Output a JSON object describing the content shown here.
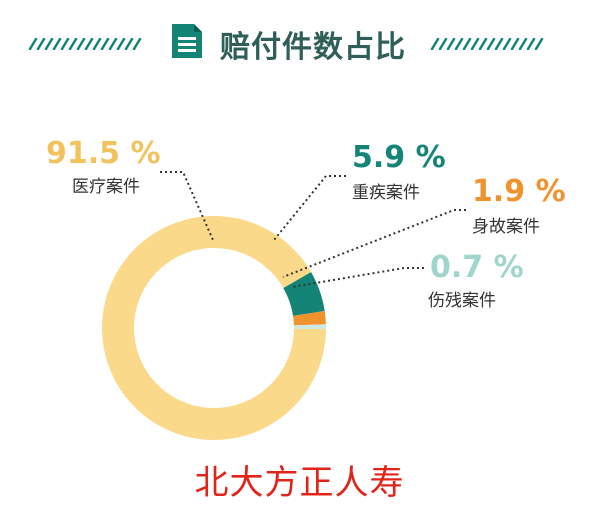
{
  "header": {
    "title": "赔付件数占比",
    "icon": "document-icon"
  },
  "footer": {
    "text": "北大方正人寿"
  },
  "colors": {
    "brand": "#138476",
    "yellow": "#fbd98a",
    "teal": "#138476",
    "orange": "#f0922e",
    "light": "#cde9e4",
    "red": "#e2231a"
  },
  "chart_data": {
    "type": "pie",
    "donut": true,
    "title": "赔付件数占比",
    "series": [
      {
        "name": "赔付件数占比",
        "categories": [
          "医疗案件",
          "重疾案件",
          "身故案件",
          "伤残案件"
        ],
        "values": [
          91.5,
          5.9,
          1.9,
          0.7
        ],
        "value_labels": [
          "91.5 %",
          "5.9 %",
          "1.9 %",
          "0.7 %"
        ]
      }
    ],
    "colors": [
      "#fbd98a",
      "#138476",
      "#f0922e",
      "#cde9e4"
    ],
    "legend": "none"
  }
}
